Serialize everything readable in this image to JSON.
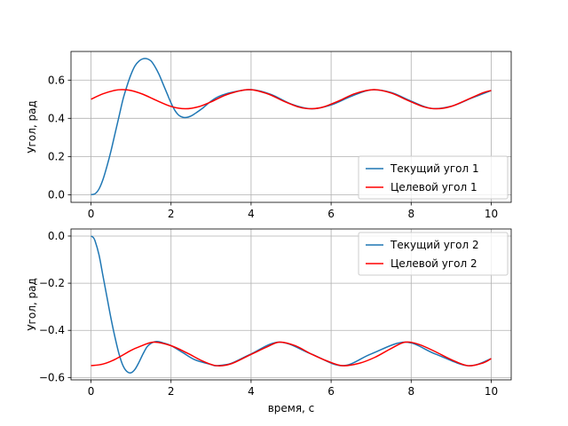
{
  "chart_data": [
    {
      "type": "line",
      "title": "",
      "xlabel": "",
      "ylabel": "Угол, рад",
      "xlim": [
        -0.5,
        10.5
      ],
      "ylim": [
        -0.04,
        0.75
      ],
      "xticks": [
        0,
        2,
        4,
        6,
        8,
        10
      ],
      "yticks": [
        0.0,
        0.2,
        0.4,
        0.6
      ],
      "ytick_labels": [
        "0.0",
        "0.2",
        "0.4",
        "0.6"
      ],
      "grid": true,
      "legend_position": "lower-right",
      "series": [
        {
          "name": "Текущий угол 1",
          "color": "#1f77b4",
          "x": [
            0,
            0.1,
            0.2,
            0.3,
            0.4,
            0.5,
            0.6,
            0.7,
            0.8,
            0.9,
            1.0,
            1.1,
            1.2,
            1.3,
            1.4,
            1.5,
            1.6,
            1.7,
            1.8,
            1.9,
            2.0,
            2.1,
            2.2,
            2.3,
            2.4,
            2.5,
            2.6,
            2.8,
            3.0,
            3.2,
            3.5,
            4.0,
            4.5,
            5.0,
            5.5,
            6.0,
            6.5,
            7.0,
            7.5,
            8.0,
            8.5,
            9.0,
            9.5,
            10.0
          ],
          "y": [
            0.0,
            0.005,
            0.03,
            0.08,
            0.15,
            0.23,
            0.32,
            0.41,
            0.5,
            0.57,
            0.63,
            0.675,
            0.7,
            0.712,
            0.712,
            0.7,
            0.67,
            0.63,
            0.58,
            0.53,
            0.48,
            0.44,
            0.415,
            0.405,
            0.405,
            0.412,
            0.425,
            0.455,
            0.49,
            0.515,
            0.535,
            0.55,
            0.525,
            0.475,
            0.45,
            0.47,
            0.515,
            0.549,
            0.535,
            0.49,
            0.452,
            0.463,
            0.505,
            0.545
          ]
        },
        {
          "name": "Целевой угол 1",
          "color": "#ff0000",
          "x": [
            0,
            0.3,
            0.6,
            0.785,
            1.0,
            1.3,
            1.6,
            2.0,
            2.356,
            2.7,
            3.0,
            3.4,
            3.927,
            4.4,
            4.8,
            5.2,
            5.498,
            5.8,
            6.2,
            6.6,
            7.069,
            7.5,
            7.9,
            8.3,
            8.639,
            9.0,
            9.4,
            9.8,
            10.0
          ]
        },
        {
          "name": "",
          "color": "#ff0000",
          "x": [],
          "y": []
        }
      ]
    },
    {
      "type": "line",
      "title": "",
      "xlabel": "время, с",
      "ylabel": "Угол, рад",
      "xlim": [
        -0.5,
        10.5
      ],
      "ylim": [
        -0.61,
        0.03
      ],
      "xticks": [
        0,
        2,
        4,
        6,
        8,
        10
      ],
      "yticks": [
        0.0,
        -0.2,
        -0.4,
        -0.6
      ],
      "ytick_labels": [
        "0.0",
        "−0.2",
        "−0.4",
        "−0.6"
      ],
      "grid": true,
      "legend_position": "upper-right",
      "series": [
        {
          "name": "Текущий угол 2",
          "color": "#1f77b4",
          "x": [
            0,
            0.05,
            0.1,
            0.2,
            0.3,
            0.4,
            0.5,
            0.6,
            0.7,
            0.8,
            0.9,
            1.0,
            1.1,
            1.2,
            1.3,
            1.4,
            1.5,
            1.6,
            1.7,
            1.8,
            2.0,
            2.3,
            2.6,
            3.0,
            3.14,
            3.5,
            4.0,
            4.71,
            5.5,
            6.28,
            7.0,
            7.85,
            8.6,
            9.42,
            10.0
          ],
          "y": [
            0.0,
            -0.005,
            -0.02,
            -0.08,
            -0.17,
            -0.26,
            -0.35,
            -0.43,
            -0.5,
            -0.55,
            -0.575,
            -0.58,
            -0.565,
            -0.535,
            -0.5,
            -0.47,
            -0.455,
            -0.448,
            -0.448,
            -0.453,
            -0.465,
            -0.495,
            -0.525,
            -0.545,
            -0.55,
            -0.54,
            -0.5,
            -0.45,
            -0.5,
            -0.55,
            -0.5,
            -0.45,
            -0.5,
            -0.55,
            -0.52
          ]
        },
        {
          "name": "Целевой угол 2",
          "color": "#ff0000",
          "x": [
            0,
            0.3,
            0.6,
            1.0,
            1.2,
            1.57,
            2.0,
            2.4,
            2.8,
            3.14,
            3.5,
            4.0,
            4.4,
            4.71,
            5.1,
            5.5,
            5.9,
            6.28,
            6.7,
            7.1,
            7.5,
            7.85,
            8.2,
            8.6,
            9.0,
            9.42,
            9.8,
            10.0
          ],
          "y": [
            -0.55,
            -0.543,
            -0.523,
            -0.485,
            -0.47,
            -0.45,
            -0.465,
            -0.496,
            -0.531,
            -0.55,
            -0.542,
            -0.502,
            -0.47,
            -0.45,
            -0.465,
            -0.5,
            -0.53,
            -0.55,
            -0.54,
            -0.514,
            -0.477,
            -0.45,
            -0.46,
            -0.49,
            -0.524,
            -0.55,
            -0.538,
            -0.52
          ]
        }
      ]
    }
  ]
}
